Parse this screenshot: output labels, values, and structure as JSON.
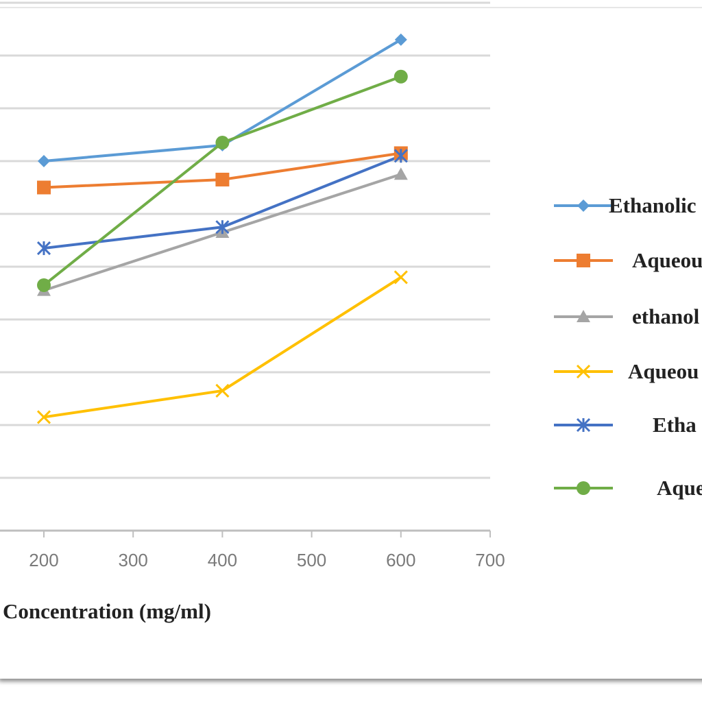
{
  "chart_data": {
    "type": "line",
    "title": "",
    "xlabel": "Concentration  (mg/ml)",
    "ylabel": "",
    "x": [
      200,
      400,
      600
    ],
    "x_ticks": [
      "200",
      "300",
      "400",
      "500",
      "600",
      "700"
    ],
    "xlim": [
      200,
      700
    ],
    "ylim": [
      0,
      100
    ],
    "grid": true,
    "legend_position": "right",
    "series": [
      {
        "name": "Ethanolic",
        "values": [
          70,
          73,
          93
        ],
        "color": "#5b9bd5",
        "marker": "diamond"
      },
      {
        "name": "Aqueou",
        "values": [
          65,
          66.5,
          71.5
        ],
        "color": "#ed7d31",
        "marker": "square"
      },
      {
        "name": "ethanol",
        "values": [
          45.5,
          56.5,
          67.5
        ],
        "color": "#a5a5a5",
        "marker": "triangle"
      },
      {
        "name": "Aqueou",
        "values": [
          21.5,
          26.5,
          48
        ],
        "color": "#ffc000",
        "marker": "x"
      },
      {
        "name": "Etha",
        "values": [
          53.5,
          57.5,
          71
        ],
        "color": "#4472c4",
        "marker": "star"
      },
      {
        "name": "Aque",
        "values": [
          46.5,
          73.5,
          86
        ],
        "color": "#70ad47",
        "marker": "circle"
      }
    ]
  }
}
